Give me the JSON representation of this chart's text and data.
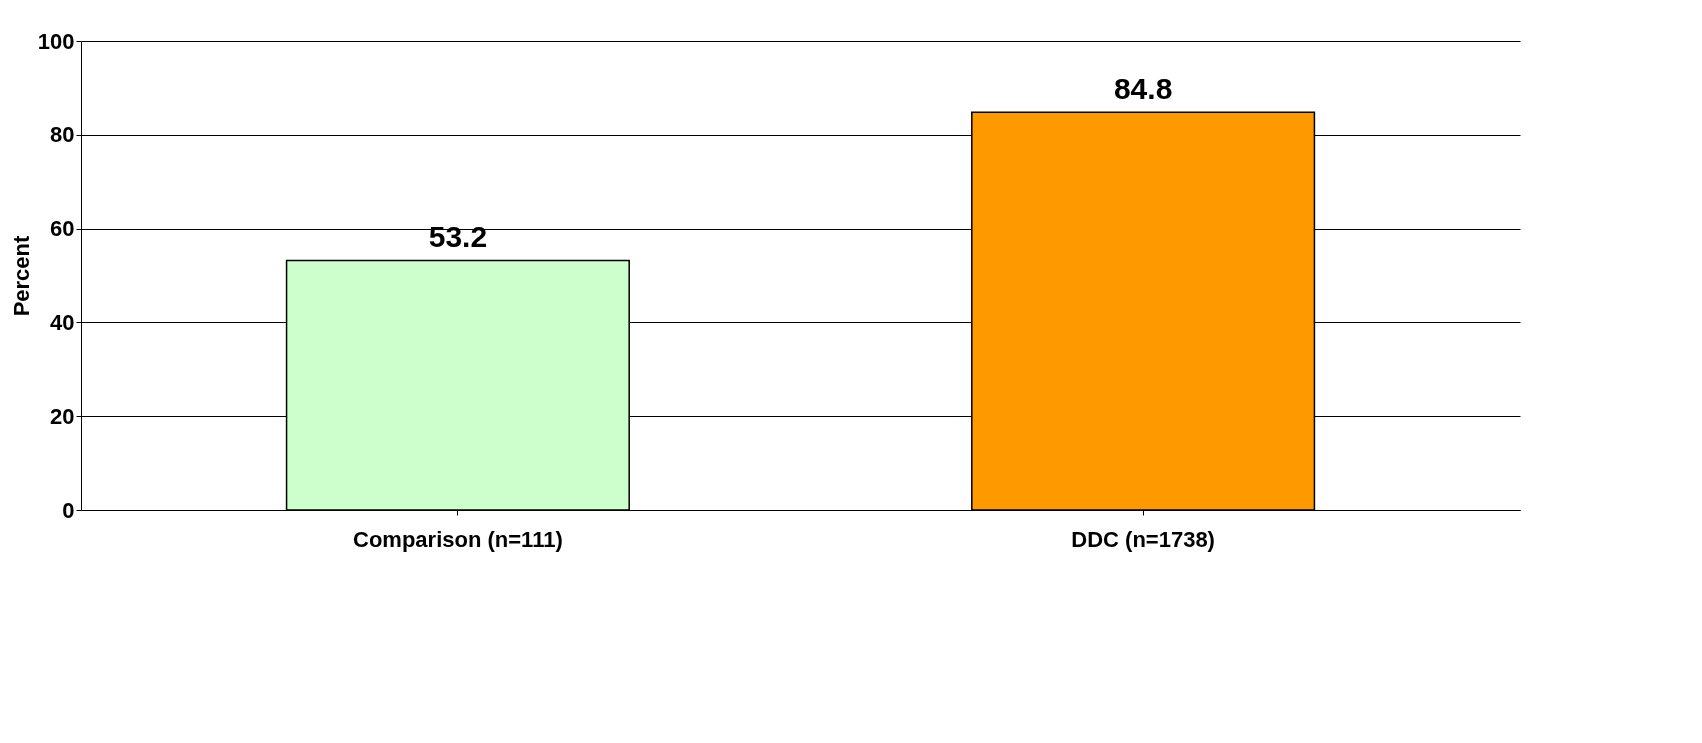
{
  "chart_data": {
    "type": "bar",
    "categories": [
      "Comparison (n=111)",
      "DDC (n=1738)"
    ],
    "values": [
      53.2,
      84.8
    ],
    "colors": [
      "#ccffcc",
      "#ff9900"
    ],
    "ylabel": "Percent",
    "ylim": [
      0,
      100
    ],
    "yticks": [
      0,
      20,
      40,
      60,
      80,
      100
    ],
    "grid": "y",
    "data_labels": true
  }
}
